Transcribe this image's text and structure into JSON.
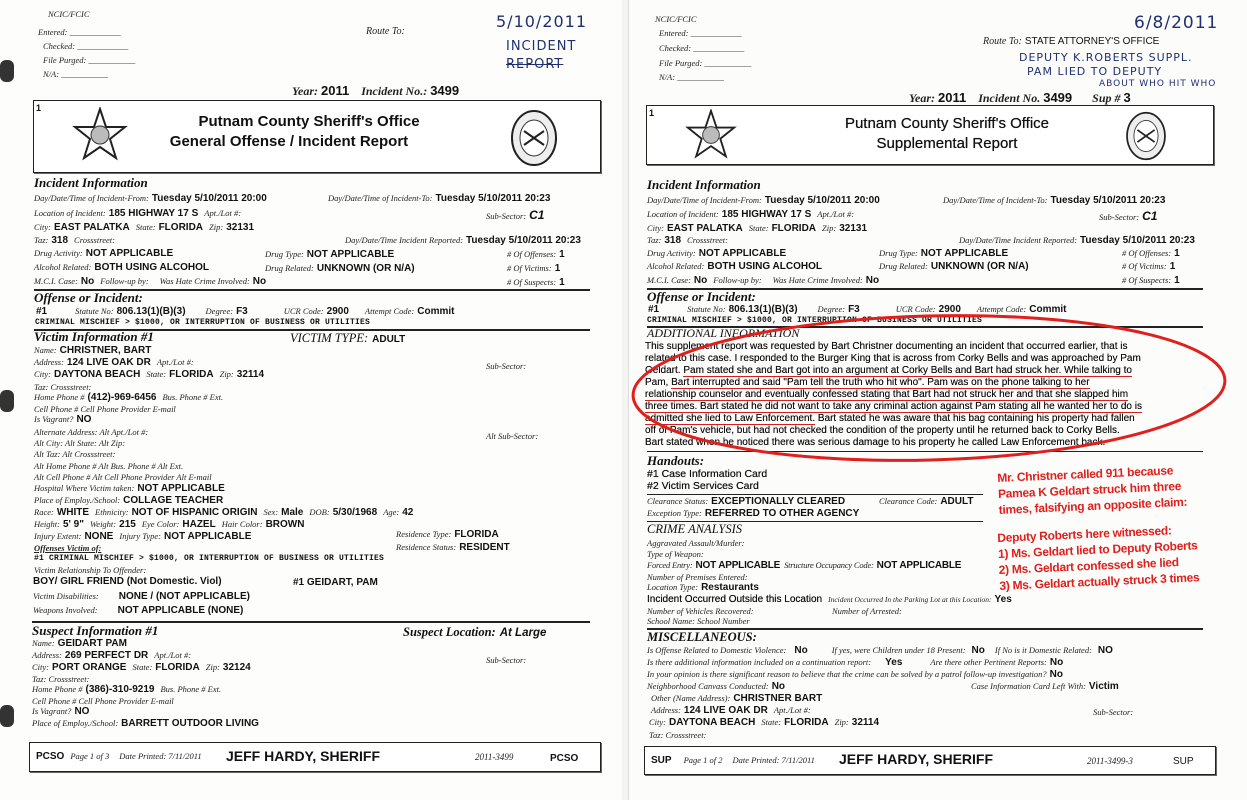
{
  "incident": {
    "heading": "Incident Information",
    "from": [
      "Day/Date/Time of Incident-From:",
      "Tuesday 5/10/2011 20:00"
    ],
    "to": [
      "Day/Date/Time of Incident-To:",
      "Tuesday 5/10/2011 20:23"
    ],
    "location": [
      "Location of Incident:",
      "185 HIGHWAY 17  S"
    ],
    "apt": "Apt./Lot #:",
    "subsector": [
      "Sub-Sector:",
      "C1"
    ],
    "city": [
      "City:",
      "EAST PALATKA"
    ],
    "state": [
      "State:",
      "FLORIDA"
    ],
    "zip": [
      "Zip:",
      "32131"
    ],
    "taz": [
      "Taz:",
      "318"
    ],
    "crossstreet": "Crossstreet:",
    "reported": [
      "Day/Date/Time Incident Reported:",
      "Tuesday 5/10/2011 20:23"
    ],
    "drug_activity": [
      "Drug Activity:",
      "NOT APPLICABLE"
    ],
    "drug_type": [
      "Drug Type:",
      "NOT APPLICABLE"
    ],
    "offenses": [
      "# Of Offenses:",
      "1"
    ],
    "alcohol": [
      "Alcohol Related:",
      "BOTH USING ALCOHOL"
    ],
    "drug_related": [
      "Drug Related:",
      "UNKNOWN (OR N/A)"
    ],
    "victims": [
      "# Of Victims:",
      "1"
    ],
    "mci": [
      "M.C.I. Case:",
      "No"
    ],
    "followup": "Follow-up by:",
    "hate": [
      "Was Hate Crime Involved:",
      "No"
    ],
    "suspects": [
      "# Of Suspects:",
      "1"
    ]
  },
  "offense": {
    "heading": "Offense or Incident:",
    "num": "#1",
    "statute": [
      "Statute No:",
      "806.13(1)(B)(3)"
    ],
    "degree": [
      "Degree:",
      "F3"
    ],
    "ucr": [
      "UCR Code:",
      "2900"
    ],
    "attempt": [
      "Attempt Code:",
      "Commit"
    ],
    "description": "CRIMINAL MISCHIEF > $1000, OR INTERRUPTION OF BUSINESS OR UTILITIES"
  },
  "footer_sheriff": "JEFF HARDY, SHERIFF",
  "left": {
    "ncic": {
      "title": "NCIC/FCIC",
      "entered": "Entered:",
      "checked": "Checked:",
      "file_purged": "File Purged:",
      "na": "N/A:"
    },
    "route_to": "Route To:",
    "handwritten": [
      "5/10/2011",
      "INCIDENT",
      "REPORT"
    ],
    "year": [
      "Year:",
      "2011"
    ],
    "incident_no": [
      "Incident No.:",
      "3499"
    ],
    "header": {
      "page_no": "1",
      "title": "Putnam County Sheriff's Office",
      "subtitle": "General Offense / Incident Report"
    },
    "victim": {
      "heading": "Victim Information #1",
      "type": [
        "VICTIM TYPE:",
        "ADULT"
      ],
      "name": [
        "Name:",
        "CHRISTNER, BART"
      ],
      "address": [
        "Address:",
        "124 LIVE OAK DR"
      ],
      "apt": "Apt./Lot #:",
      "subsector": "Sub-Sector:",
      "city": [
        "City:",
        "DAYTONA BEACH"
      ],
      "state": [
        "State:",
        "FLORIDA"
      ],
      "zip": [
        "Zip:",
        "32114"
      ],
      "taz": "Taz:   Crossstreet:",
      "home_phone": [
        "Home Phone #",
        "(412)-969-6456"
      ],
      "bus_phone": "Bus. Phone # Ext.",
      "cell": "Cell Phone #   Cell Phone Provider   E-mail",
      "vagrant": [
        "Is Vagrant?",
        "NO"
      ],
      "alt_address": "Alternate Address:      Alt Apt./Lot #:",
      "alt_subsector": "Alt Sub-Sector:",
      "alt_city": "Alt City:  Alt State:  Alt Zip:",
      "alt_taz": "Alt Taz:   Alt Crossstreet:",
      "alt_home": "Alt Home Phone #  Alt Bus. Phone # Alt Ext.",
      "alt_cell": "Alt Cell Phone #   Alt Cell Phone Provider   Alt E-mail",
      "hospital": [
        "Hospital Where Victim taken:",
        "NOT APPLICABLE"
      ],
      "employ": [
        "Place of Employ./School:",
        "COLLAGE TEACHER"
      ],
      "race": [
        "Race:",
        "WHITE"
      ],
      "ethnicity": [
        "Ethnicity:",
        "NOT OF HISPANIC ORIGIN"
      ],
      "sex": [
        "Sex:",
        "Male"
      ],
      "dob": [
        "DOB:",
        "5/30/1968"
      ],
      "age": [
        "Age:",
        "42"
      ],
      "height": [
        "Height:",
        "5' 9\""
      ],
      "weight": [
        "Weight:",
        "215"
      ],
      "eye": [
        "Eye Color:",
        "HAZEL"
      ],
      "hair": [
        "Hair Color:",
        "BROWN"
      ],
      "injury_extent": [
        "Injury Extent:",
        "NONE"
      ],
      "injury_type": [
        "Injury Type:",
        "NOT APPLICABLE"
      ],
      "residence_type": [
        "Residence Type:",
        "FLORIDA"
      ],
      "residence_status": [
        "Residence Status:",
        "RESIDENT"
      ],
      "offenses_of": "Offenses Victim of:",
      "offense_line": "#1   CRIMINAL MISCHIEF > $1000, OR INTERRUPTION OF BUSINESS OR UTILITIES",
      "relationship_label": "Victim Relationship To Offender:",
      "relationship": "BOY/ GIRL FRIEND (Not Domestic. Viol)",
      "relationship_to": "#1  GEIDART,  PAM",
      "disabilities": [
        "Victim Disabilities:",
        "NONE / (NOT APPLICABLE)"
      ],
      "weapons": [
        "Weapons Involved:",
        "NOT APPLICABLE (NONE)"
      ]
    },
    "suspect": {
      "heading": "Suspect Information #1",
      "location": [
        "Suspect Location:",
        "At Large"
      ],
      "name": [
        "Name:",
        "GEIDART PAM"
      ],
      "address": [
        "Address:",
        "269 PERFECT DR"
      ],
      "apt": "Apt./Lot #:",
      "subsector": "Sub-Sector:",
      "city": [
        "City:",
        "PORT ORANGE"
      ],
      "state": [
        "State:",
        "FLORIDA"
      ],
      "zip": [
        "Zip:",
        "32124"
      ],
      "taz": "Taz:   Crossstreet:",
      "home_phone": [
        "Home Phone #",
        "(386)-310-9219"
      ],
      "bus_phone": "Bus. Phone # Ext.",
      "cell": "Cell Phone #   Cell Phone Provider   E-mail",
      "vagrant": [
        "Is Vagrant?",
        "NO"
      ],
      "employ": [
        "Place of Employ./School:",
        "BARRETT OUTDOOR LIVING"
      ]
    },
    "footer": {
      "code": "PCSO",
      "page": "Page 1 of 3",
      "printed": "Date Printed: 7/11/2011",
      "case": "2011-3499",
      "code_right": "PCSO"
    }
  },
  "right": {
    "ncic": {
      "title": "NCIC/FCIC",
      "entered": "Entered:",
      "checked": "Checked:",
      "file_purged": "File Purged:",
      "na": "N/A:"
    },
    "route_to": [
      "Route To:",
      "STATE ATTORNEY'S OFFICE"
    ],
    "handwritten": [
      "6/8/2011",
      "DEPUTY K.ROBERTS SUPPL.",
      "PAM LIED TO DEPUTY",
      "ABOUT WHO HIT WHO"
    ],
    "year": [
      "Year:",
      "2011"
    ],
    "incident_no": [
      "Incident No.",
      "3499"
    ],
    "sup": [
      "Sup #",
      "3"
    ],
    "header": {
      "page_no": "1",
      "title": "Putnam County Sheriff's Office",
      "subtitle": "Supplemental Report"
    },
    "additional": {
      "heading": "ADDITIONAL INFORMATION",
      "lines": [
        [
          "This supplement report was requested by Bart Christner documenting an incident that occurred earlier, that is"
        ],
        [
          "related to this case. I responded to the Burger King that is across from Corky Bells and was approached by Pam"
        ],
        [
          "Geldart. ",
          "Pam stated she and Bart got into an argument at Corky Bells and Bart had struck her. While talking to"
        ],
        [
          "Pam, ",
          "Bart interrupted and said \"Pam tell the truth who hit who\". Pam was on the phone talking to her"
        ],
        [
          "relationship counselor and eventually confessed stating that Bart had not struck her and that she slapped him"
        ],
        [
          "three times. Bart stated he did not want to take any criminal action against Pam stating all he wanted her to do is"
        ],
        [
          "admitted she lied to Law Enforcement.",
          " Bart stated he was aware that his bag containing his property had fallen"
        ],
        [
          "off of Pam's vehicle, but had not checked the condition of the property until he returned back to Corky Bells."
        ],
        [
          "Bart stated when he noticed there was serious damage to his property he called Law Enforcement back."
        ]
      ]
    },
    "handouts": {
      "heading": "Handouts:",
      "items": [
        "#1 Case Information Card",
        "#2 Victim Services Card"
      ]
    },
    "clearance": {
      "status": [
        "Clearance Status:",
        "EXCEPTIONALLY CLEARED"
      ],
      "code": [
        "Clearance Code:",
        "ADULT"
      ],
      "exception": [
        "Exception Type:",
        "REFERRED TO OTHER AGENCY"
      ]
    },
    "crime_analysis": {
      "heading": "CRIME ANALYSIS",
      "aggravated": "Aggravated Assault/Murder:",
      "weapon": "Type of Weapon:",
      "forced_entry": [
        "Forced Entry:",
        "NOT APPLICABLE"
      ],
      "occupancy": [
        "Structure Occupancy Code:",
        "NOT APPLICABLE"
      ],
      "premises": "Number of Premises Entered:",
      "location_type": [
        "Location Type:",
        "Restaurants"
      ],
      "outside": "Incident Occurred Outside this Location",
      "parking": [
        "Incident Occurred In the Parking Lot at this Location:",
        "Yes"
      ],
      "vehicles": "Number of Vehicles Recovered:",
      "arrested": "Number of Arrested:",
      "school": "School Name:    School Number"
    },
    "misc": {
      "heading": "MISCELLANEOUS:",
      "dv": [
        "Is Offense Related to Domestic Violence:",
        "No"
      ],
      "children": [
        "If yes, were Children under 18 Present:",
        "No"
      ],
      "domestic": [
        "If No is it Domestic Related:",
        "NO"
      ],
      "continuation": [
        "Is there additional information included on a continuation report:",
        "Yes"
      ],
      "pertinent": [
        "Are there other Pertinent Reports:",
        "No"
      ],
      "solvable": [
        "In your opinion is there significant reason to believe that the crime can be solved by a patrol follow-up investigation?",
        "No"
      ],
      "canvass": [
        "Neighborhood Canvass Conducted:",
        "No"
      ],
      "card_left": [
        "Case Information Card Left With:",
        "Victim"
      ],
      "other": [
        "Other (Name Address):",
        "CHRISTNER BART"
      ],
      "address": [
        "Address:",
        "124 LIVE OAK DR"
      ],
      "apt": "Apt./Lot #:",
      "subsector": "Sub-Sector:",
      "city": [
        "City:",
        "DAYTONA BEACH"
      ],
      "state": [
        "State:",
        "FLORIDA"
      ],
      "zip": [
        "Zip:",
        "32114"
      ],
      "taz": "Taz:   Crossstreet:"
    },
    "footer": {
      "code": "SUP",
      "page": "Page 1 of 2",
      "printed": "Date Printed: 7/11/2011",
      "case": "2011-3499-3",
      "code_right": "SUP"
    },
    "annotation": {
      "color": "#e0201c",
      "lines": [
        "Mr. Christner called 911 because",
        "Pamea K Geldart struck him three",
        "times, falsifying an opposite claim:"
      ],
      "witness": [
        "Deputy Roberts here witnessed:",
        "1) Ms. Geldart lied to Deputy Roberts",
        "2) Ms. Geldart confessed she lied",
        "3) Ms. Geldart actually struck 3 times"
      ]
    }
  }
}
